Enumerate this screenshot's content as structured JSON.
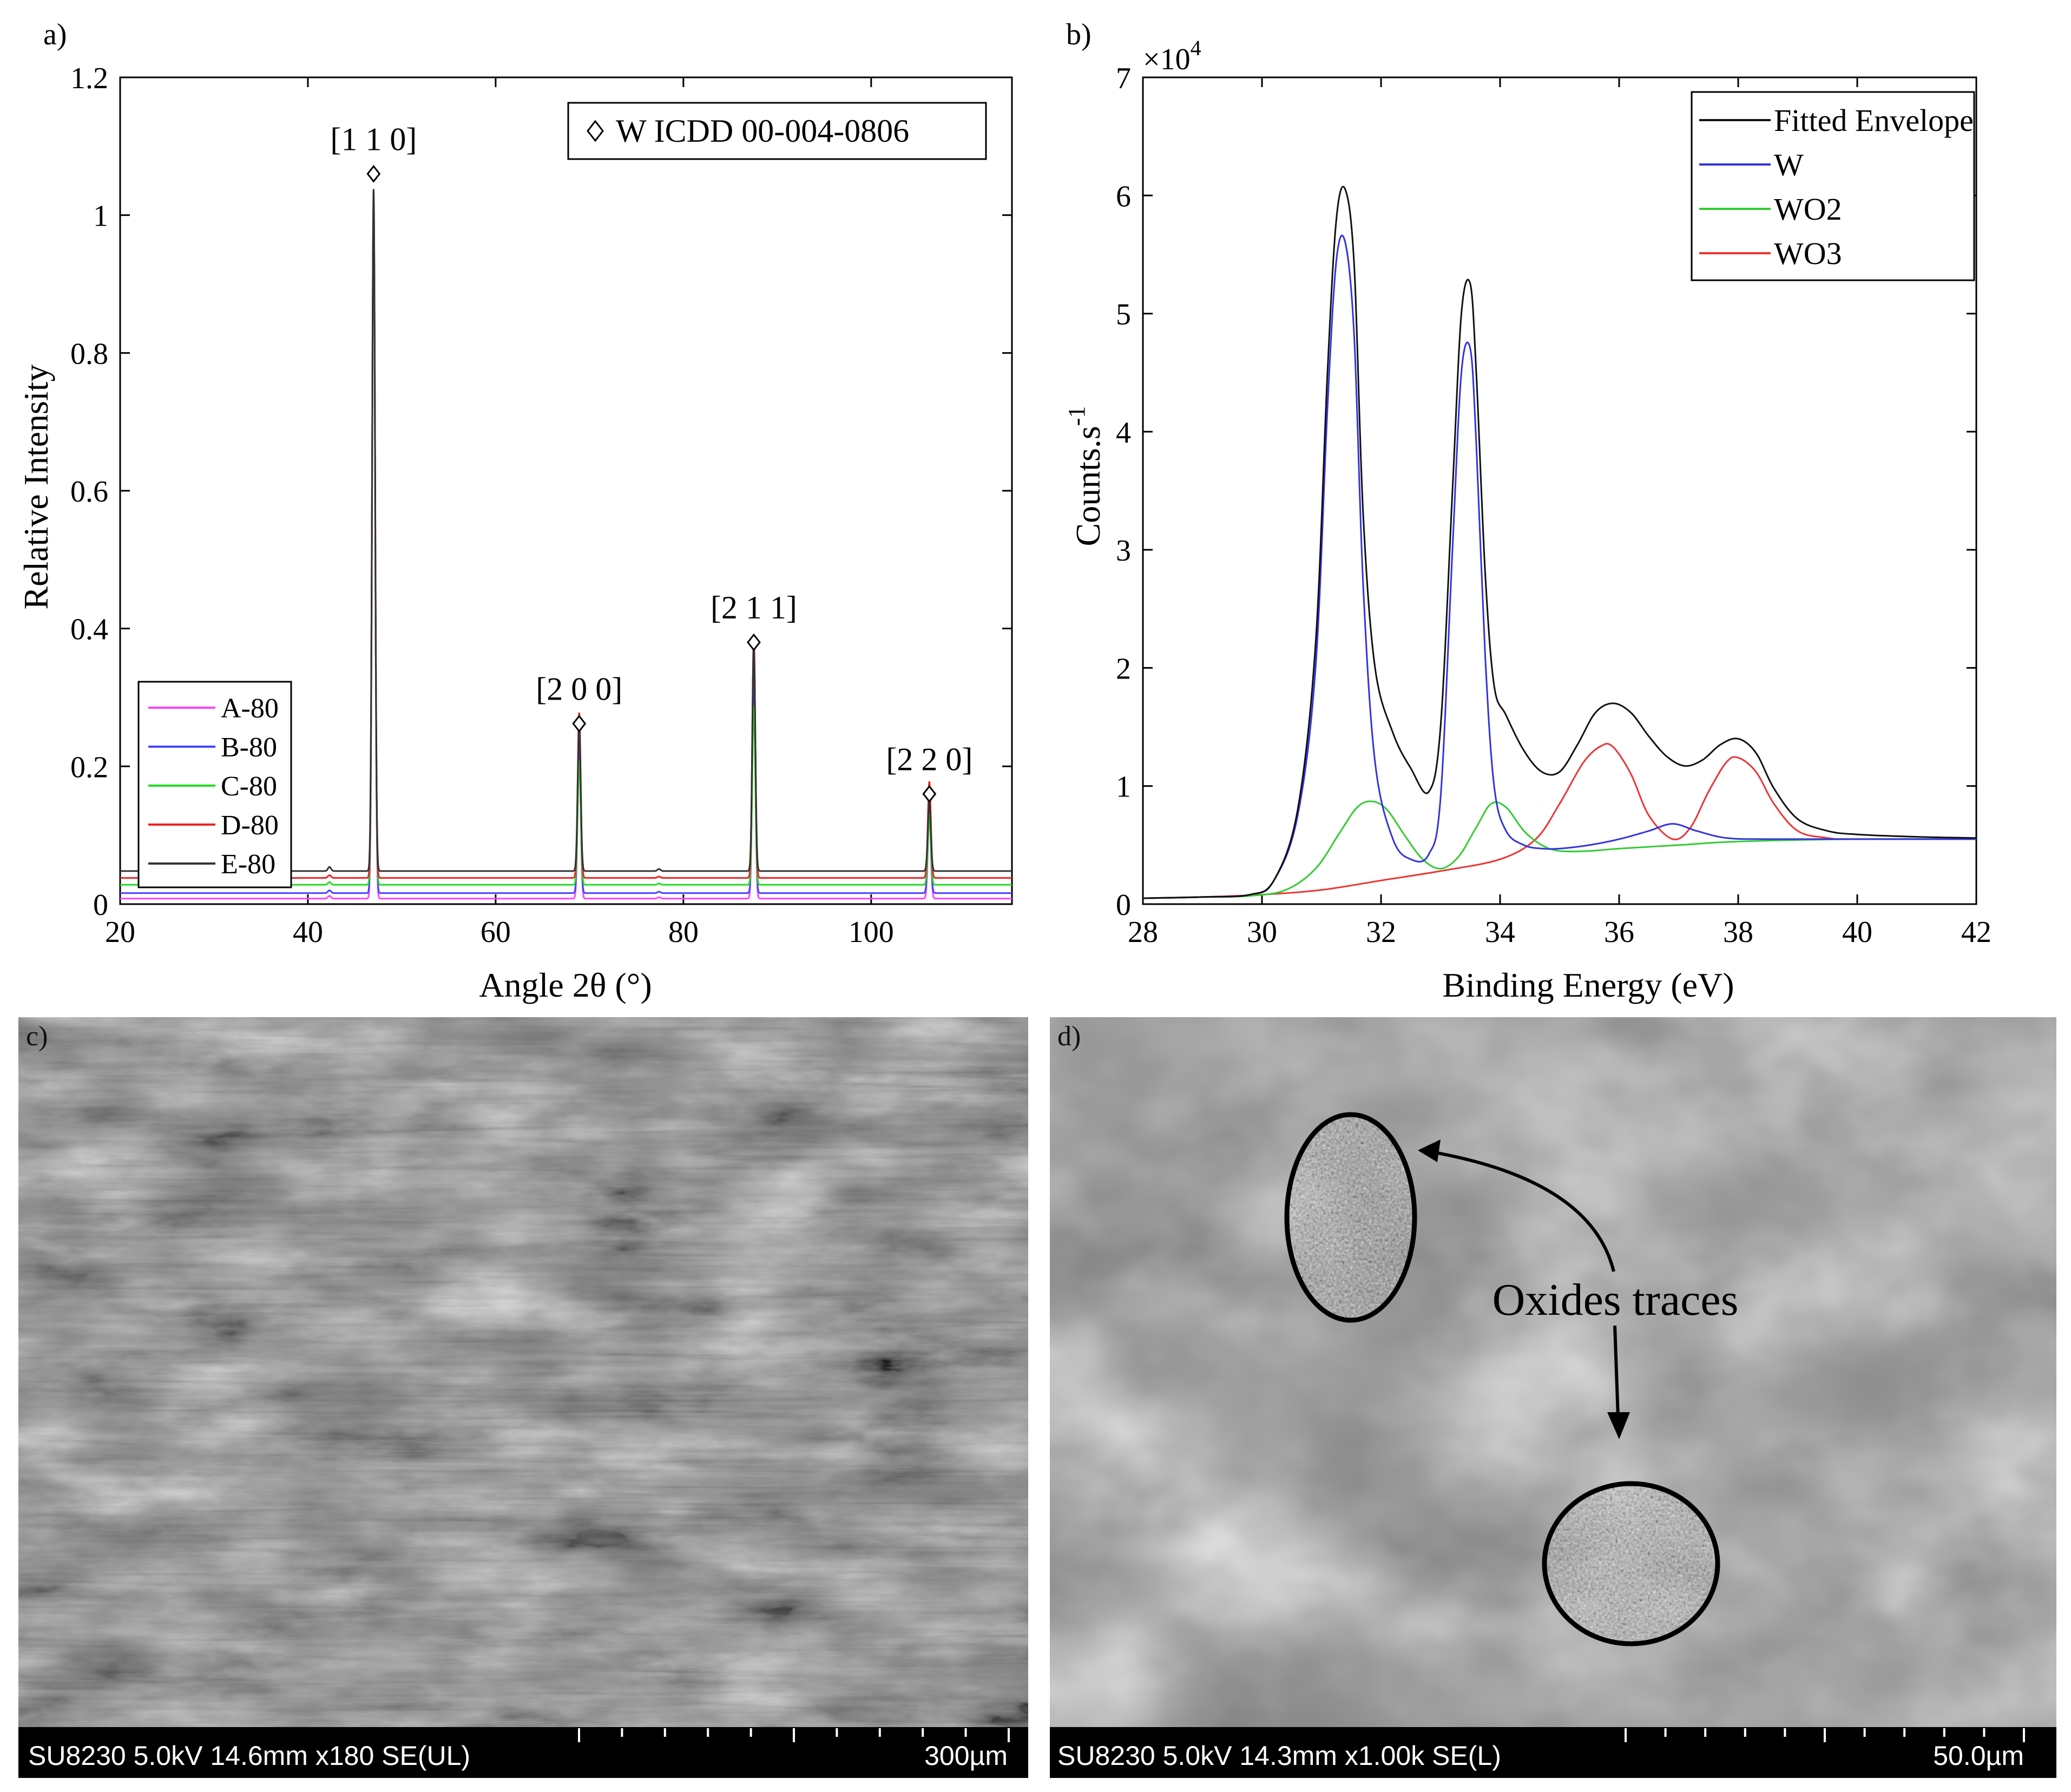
{
  "panels": {
    "a": {
      "label": "a)",
      "chart_data": {
        "type": "line",
        "xlabel": "Angle 2θ (°)",
        "ylabel": "Relative Intensity",
        "xlim": [
          20,
          115
        ],
        "ylim": [
          0,
          1.2
        ],
        "xticks": [
          20,
          40,
          60,
          80,
          100
        ],
        "yticks": [
          0,
          0.2,
          0.4,
          0.6,
          0.8,
          1,
          1.2
        ],
        "grid": false,
        "legend_position": "bottom-left",
        "reference_legend": "W ICDD 00-004-0806",
        "reference_peaks": [
          {
            "label": "[1 1 0]",
            "x": 47.0,
            "y": 1.06
          },
          {
            "label": "[2 0 0]",
            "x": 68.9,
            "y": 0.262
          },
          {
            "label": "[2 1 1]",
            "x": 87.5,
            "y": 0.38
          },
          {
            "label": "[2 2 0]",
            "x": 106.2,
            "y": 0.16
          }
        ],
        "series": [
          {
            "name": "A-80",
            "color": "#ff44ff",
            "baseline": 0.008,
            "peaks": [
              [
                42.3,
                0.004
              ],
              [
                47.0,
                1.0
              ],
              [
                68.9,
                0.22
              ],
              [
                77.4,
                0.002
              ],
              [
                87.5,
                0.33
              ],
              [
                106.2,
                0.12
              ]
            ]
          },
          {
            "name": "B-80",
            "color": "#4444ff",
            "baseline": 0.016,
            "peaks": [
              [
                42.3,
                0.004
              ],
              [
                47.0,
                1.0
              ],
              [
                68.9,
                0.21
              ],
              [
                77.4,
                0.002
              ],
              [
                87.5,
                0.32
              ],
              [
                106.2,
                0.12
              ]
            ]
          },
          {
            "name": "C-80",
            "color": "#22dd22",
            "baseline": 0.028,
            "peaks": [
              [
                42.3,
                0.004
              ],
              [
                47.0,
                0.97
              ],
              [
                68.9,
                0.18
              ],
              [
                77.4,
                0.002
              ],
              [
                87.5,
                0.26
              ],
              [
                106.2,
                0.1
              ]
            ]
          },
          {
            "name": "D-80",
            "color": "#ee2222",
            "baseline": 0.038,
            "peaks": [
              [
                42.3,
                0.004
              ],
              [
                47.0,
                0.99
              ],
              [
                68.9,
                0.24
              ],
              [
                77.4,
                0.002
              ],
              [
                87.5,
                0.35
              ],
              [
                106.2,
                0.14
              ]
            ]
          },
          {
            "name": "E-80",
            "color": "#333333",
            "baseline": 0.048,
            "peaks": [
              [
                42.3,
                0.006
              ],
              [
                47.0,
                0.99
              ],
              [
                68.9,
                0.21
              ],
              [
                77.4,
                0.003
              ],
              [
                87.5,
                0.33
              ],
              [
                106.2,
                0.1
              ]
            ]
          }
        ]
      }
    },
    "b": {
      "label": "b)",
      "chart_data": {
        "type": "line",
        "xlabel": "Binding Energy (eV)",
        "ylabel": "Counts.s",
        "ylabel_superscript": "-1",
        "y_multiplier": "×10",
        "y_multiplier_exp": "4",
        "xlim": [
          28,
          42
        ],
        "ylim": [
          0,
          7
        ],
        "xticks": [
          28,
          30,
          32,
          34,
          36,
          38,
          40,
          42
        ],
        "yticks": [
          0,
          1,
          2,
          3,
          4,
          5,
          6,
          7
        ],
        "grid": false,
        "legend_position": "top-right",
        "series": [
          {
            "name": "Fitted Envelope",
            "color": "#111111",
            "x": [
              28,
              29,
              29.8,
              30.2,
              30.6,
              30.9,
              31.1,
              31.25,
              31.4,
              31.55,
              31.7,
              31.9,
              32.2,
              32.5,
              32.8,
              33.0,
              33.2,
              33.35,
              33.5,
              33.6,
              33.75,
              33.9,
              34.1,
              34.4,
              34.7,
              35.0,
              35.3,
              35.6,
              35.9,
              36.2,
              36.5,
              36.8,
              37.1,
              37.4,
              37.7,
              38.0,
              38.3,
              38.6,
              39.0,
              39.5,
              40,
              41,
              42
            ],
            "y": [
              0.05,
              0.06,
              0.08,
              0.2,
              0.8,
              2.2,
              4.5,
              5.8,
              6.05,
              5.4,
              3.3,
              2.0,
              1.45,
              1.15,
              0.95,
              1.5,
              3.5,
              5.0,
              5.25,
              4.5,
              2.8,
              1.85,
              1.6,
              1.3,
              1.12,
              1.12,
              1.35,
              1.62,
              1.7,
              1.62,
              1.42,
              1.25,
              1.17,
              1.22,
              1.35,
              1.4,
              1.28,
              0.98,
              0.72,
              0.62,
              0.59,
              0.57,
              0.56
            ]
          },
          {
            "name": "W",
            "color": "#3333dd",
            "x": [
              28,
              29,
              29.8,
              30.2,
              30.6,
              30.9,
              31.1,
              31.25,
              31.4,
              31.55,
              31.7,
              31.9,
              32.2,
              32.5,
              32.8,
              33.0,
              33.2,
              33.35,
              33.5,
              33.6,
              33.75,
              33.9,
              34.1,
              34.4,
              34.7,
              35.0,
              35.5,
              36.0,
              36.5,
              36.9,
              37.3,
              37.8,
              38.5,
              40,
              42
            ],
            "y": [
              0.05,
              0.06,
              0.08,
              0.2,
              0.75,
              2.0,
              4.2,
              5.45,
              5.6,
              4.8,
              2.7,
              1.2,
              0.55,
              0.38,
              0.42,
              0.9,
              3.0,
              4.5,
              4.7,
              3.9,
              2.1,
              1.0,
              0.62,
              0.5,
              0.47,
              0.47,
              0.5,
              0.55,
              0.62,
              0.68,
              0.62,
              0.56,
              0.55,
              0.55,
              0.55
            ]
          },
          {
            "name": "WO2",
            "color": "#33cc33",
            "x": [
              28,
              29,
              29.8,
              30.4,
              30.9,
              31.3,
              31.6,
              31.85,
              32.1,
              32.4,
              32.7,
              33.0,
              33.3,
              33.6,
              33.85,
              34.1,
              34.4,
              34.7,
              35.0,
              35.5,
              36,
              37,
              38,
              40,
              42
            ],
            "y": [
              0.05,
              0.06,
              0.07,
              0.12,
              0.3,
              0.6,
              0.82,
              0.87,
              0.8,
              0.58,
              0.38,
              0.3,
              0.4,
              0.65,
              0.85,
              0.82,
              0.62,
              0.5,
              0.45,
              0.45,
              0.47,
              0.5,
              0.53,
              0.55,
              0.55
            ]
          },
          {
            "name": "WO3",
            "color": "#ee3333",
            "x": [
              28,
              29,
              30,
              31,
              32,
              33,
              34,
              34.6,
              35.0,
              35.4,
              35.7,
              35.9,
              36.2,
              36.5,
              36.9,
              37.2,
              37.5,
              37.8,
              38.0,
              38.3,
              38.6,
              39.0,
              39.5,
              40,
              42
            ],
            "y": [
              0.05,
              0.06,
              0.08,
              0.12,
              0.2,
              0.28,
              0.38,
              0.55,
              0.85,
              1.2,
              1.34,
              1.33,
              1.1,
              0.75,
              0.55,
              0.65,
              0.95,
              1.2,
              1.24,
              1.12,
              0.85,
              0.62,
              0.56,
              0.55,
              0.55
            ]
          }
        ]
      }
    },
    "c": {
      "label": "c)",
      "sem_info": "SU8230 5.0kV 14.6mm x180 SE(UL)",
      "scale_label": "300µm"
    },
    "d": {
      "label": "d)",
      "sem_info": "SU8230 5.0kV 14.3mm x1.00k SE(L)",
      "scale_label": "50.0µm",
      "annotation": "Oxides traces"
    }
  }
}
